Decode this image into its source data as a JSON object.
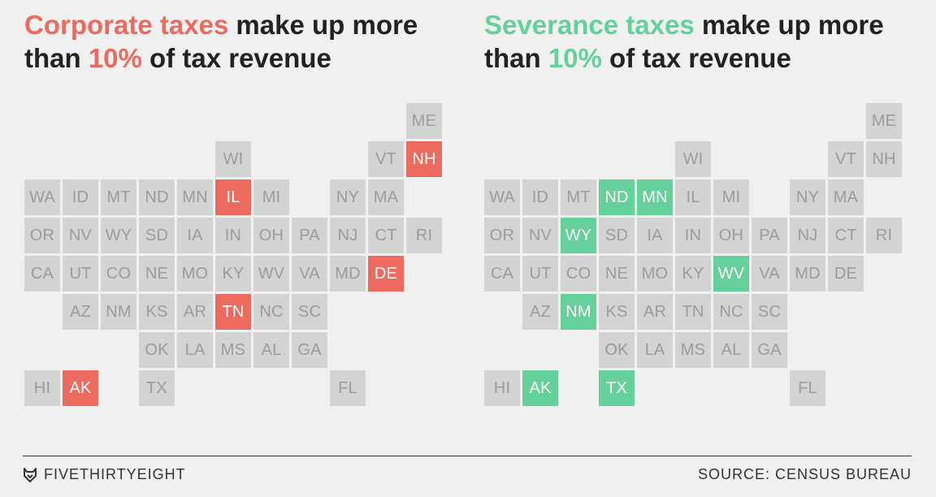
{
  "left_panel": {
    "title_prefix": "Corporate taxes",
    "title_mid": " make up more than ",
    "title_pct": "10%",
    "title_suffix": " of tax revenue",
    "accent": "#ec6b5e",
    "highlighted": [
      "NH",
      "IL",
      "DE",
      "TN",
      "AK"
    ]
  },
  "right_panel": {
    "title_prefix": "Severance taxes",
    "title_mid": " make up more than ",
    "title_pct": "10%",
    "title_suffix": " of tax revenue",
    "accent": "#64d19a",
    "highlighted": [
      "ND",
      "MN",
      "WY",
      "WV",
      "NM",
      "AK",
      "TX"
    ]
  },
  "states": [
    {
      "abbr": "ME",
      "row": 0,
      "col": 10
    },
    {
      "abbr": "WI",
      "row": 1,
      "col": 5
    },
    {
      "abbr": "VT",
      "row": 1,
      "col": 9
    },
    {
      "abbr": "NH",
      "row": 1,
      "col": 10
    },
    {
      "abbr": "WA",
      "row": 2,
      "col": 0
    },
    {
      "abbr": "ID",
      "row": 2,
      "col": 1
    },
    {
      "abbr": "MT",
      "row": 2,
      "col": 2
    },
    {
      "abbr": "ND",
      "row": 2,
      "col": 3
    },
    {
      "abbr": "MN",
      "row": 2,
      "col": 4
    },
    {
      "abbr": "IL",
      "row": 2,
      "col": 5
    },
    {
      "abbr": "MI",
      "row": 2,
      "col": 6
    },
    {
      "abbr": "NY",
      "row": 2,
      "col": 8
    },
    {
      "abbr": "MA",
      "row": 2,
      "col": 9
    },
    {
      "abbr": "OR",
      "row": 3,
      "col": 0
    },
    {
      "abbr": "NV",
      "row": 3,
      "col": 1
    },
    {
      "abbr": "WY",
      "row": 3,
      "col": 2
    },
    {
      "abbr": "SD",
      "row": 3,
      "col": 3
    },
    {
      "abbr": "IA",
      "row": 3,
      "col": 4
    },
    {
      "abbr": "IN",
      "row": 3,
      "col": 5
    },
    {
      "abbr": "OH",
      "row": 3,
      "col": 6
    },
    {
      "abbr": "PA",
      "row": 3,
      "col": 7
    },
    {
      "abbr": "NJ",
      "row": 3,
      "col": 8
    },
    {
      "abbr": "CT",
      "row": 3,
      "col": 9
    },
    {
      "abbr": "RI",
      "row": 3,
      "col": 10
    },
    {
      "abbr": "CA",
      "row": 4,
      "col": 0
    },
    {
      "abbr": "UT",
      "row": 4,
      "col": 1
    },
    {
      "abbr": "CO",
      "row": 4,
      "col": 2
    },
    {
      "abbr": "NE",
      "row": 4,
      "col": 3
    },
    {
      "abbr": "MO",
      "row": 4,
      "col": 4
    },
    {
      "abbr": "KY",
      "row": 4,
      "col": 5
    },
    {
      "abbr": "WV",
      "row": 4,
      "col": 6
    },
    {
      "abbr": "VA",
      "row": 4,
      "col": 7
    },
    {
      "abbr": "MD",
      "row": 4,
      "col": 8
    },
    {
      "abbr": "DE",
      "row": 4,
      "col": 9
    },
    {
      "abbr": "AZ",
      "row": 5,
      "col": 1
    },
    {
      "abbr": "NM",
      "row": 5,
      "col": 2
    },
    {
      "abbr": "KS",
      "row": 5,
      "col": 3
    },
    {
      "abbr": "AR",
      "row": 5,
      "col": 4
    },
    {
      "abbr": "TN",
      "row": 5,
      "col": 5
    },
    {
      "abbr": "NC",
      "row": 5,
      "col": 6
    },
    {
      "abbr": "SC",
      "row": 5,
      "col": 7
    },
    {
      "abbr": "OK",
      "row": 6,
      "col": 3
    },
    {
      "abbr": "LA",
      "row": 6,
      "col": 4
    },
    {
      "abbr": "MS",
      "row": 6,
      "col": 5
    },
    {
      "abbr": "AL",
      "row": 6,
      "col": 6
    },
    {
      "abbr": "GA",
      "row": 6,
      "col": 7
    },
    {
      "abbr": "HI",
      "row": 7,
      "col": 0
    },
    {
      "abbr": "AK",
      "row": 7,
      "col": 1
    },
    {
      "abbr": "TX",
      "row": 7,
      "col": 3
    },
    {
      "abbr": "FL",
      "row": 7,
      "col": 8
    }
  ],
  "footer": {
    "brand": "FIVETHIRTYEIGHT",
    "brand_icon": "fox-icon",
    "source": "SOURCE: CENSUS BUREAU"
  }
}
